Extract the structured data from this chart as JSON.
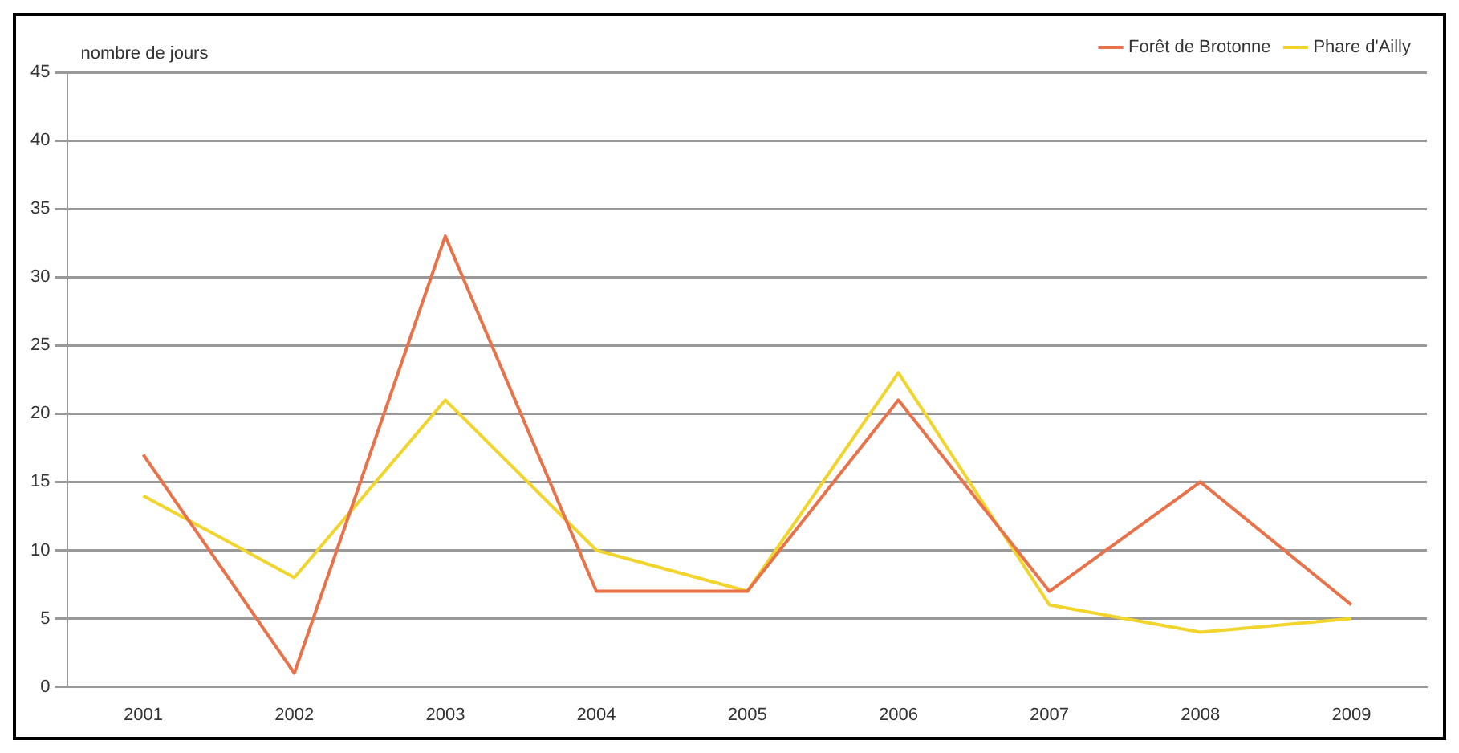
{
  "chart_data": {
    "type": "line",
    "ylabel": "nombre de jours",
    "categories": [
      "2001",
      "2002",
      "2003",
      "2004",
      "2005",
      "2006",
      "2007",
      "2008",
      "2009"
    ],
    "series": [
      {
        "name": "Forêt de Brotonne",
        "color": "#e8734a",
        "values": [
          17,
          1,
          33,
          7,
          7,
          21,
          7,
          15,
          6
        ]
      },
      {
        "name": "Phare d'Ailly",
        "color": "#f2d52c",
        "values": [
          14,
          8,
          21,
          10,
          7,
          23,
          6,
          4,
          5
        ]
      }
    ],
    "ylim": [
      0,
      45
    ],
    "yticks": [
      0,
      5,
      10,
      15,
      20,
      25,
      30,
      35,
      40,
      45
    ],
    "grid": "y",
    "legend": "top right",
    "marker": "none",
    "line_style": "solid"
  }
}
